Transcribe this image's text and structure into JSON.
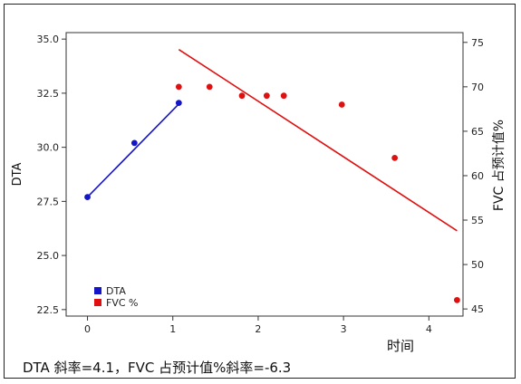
{
  "chart_data": {
    "type": "scatter",
    "title": "",
    "xlabel": "时间",
    "ylabel": "DTA",
    "y2label": "FVC 占预计值%",
    "xlim": [
      -0.25,
      4.4
    ],
    "ylim": [
      22.2,
      35.3
    ],
    "y2lim": [
      44.2,
      76.1
    ],
    "x_ticks": [
      0,
      1,
      2,
      3,
      4
    ],
    "y_ticks": [
      22.5,
      25.0,
      27.5,
      30.0,
      32.5,
      35.0
    ],
    "y_tick_labels": [
      "22.5",
      "25.0",
      "27.5",
      "30.0",
      "32.5",
      "35.0"
    ],
    "y2_ticks": [
      45,
      50,
      55,
      60,
      65,
      70,
      75
    ],
    "grid": false,
    "legend_position": "bottom-left",
    "series": [
      {
        "name": "DTA",
        "axis": "left",
        "color": "#1414c8",
        "x": [
          0.0,
          0.55,
          1.07
        ],
        "y": [
          27.7,
          30.2,
          32.05
        ],
        "fit_line": {
          "x": [
            0.0,
            1.07
          ],
          "y": [
            27.7,
            32.0
          ]
        }
      },
      {
        "name": "FVC %",
        "axis": "right",
        "color": "#e01010",
        "x": [
          1.07,
          1.43,
          1.81,
          2.1,
          2.3,
          2.98,
          3.6,
          4.33
        ],
        "y": [
          70,
          70,
          69,
          69,
          69,
          68,
          62,
          46
        ],
        "fit_line": {
          "x": [
            1.07,
            4.33
          ],
          "y": [
            74.2,
            53.8
          ]
        }
      }
    ]
  },
  "caption": "DTA 斜率=4.1，FVC 占预计值%斜率=-6.3"
}
